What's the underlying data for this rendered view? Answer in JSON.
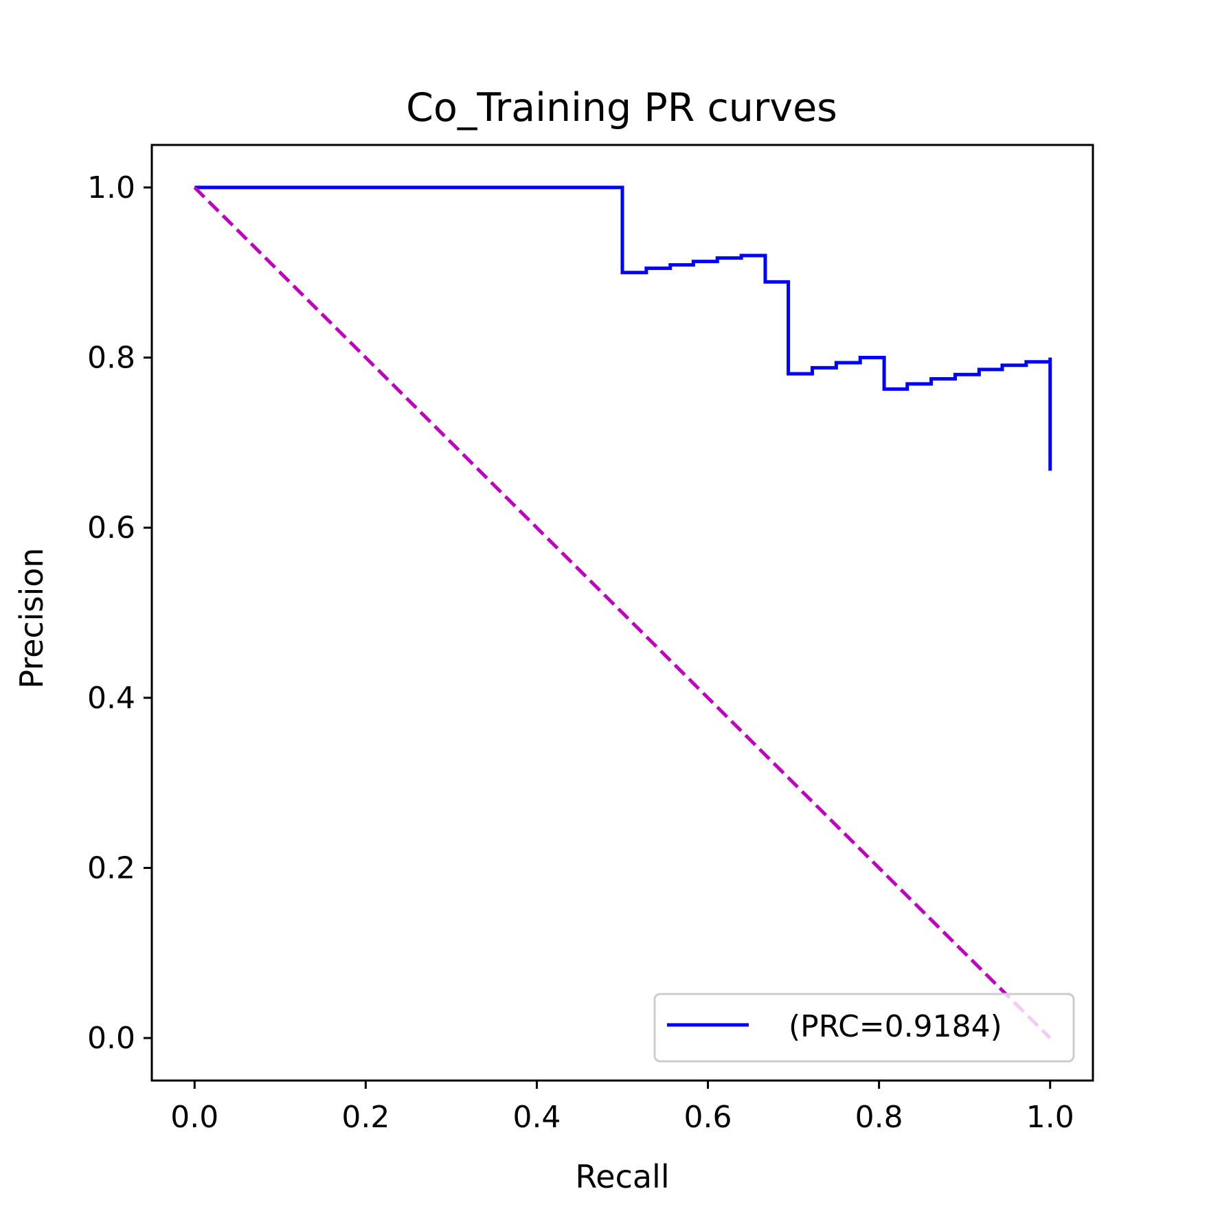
{
  "chart_data": {
    "type": "line",
    "title": "Co_Training PR curves",
    "xlabel": "Recall",
    "ylabel": "Precision",
    "xlim": [
      -0.05,
      1.05
    ],
    "ylim": [
      -0.05,
      1.05
    ],
    "xticks": [
      "0.0",
      "0.2",
      "0.4",
      "0.6",
      "0.8",
      "1.0"
    ],
    "yticks": [
      "0.0",
      "0.2",
      "0.4",
      "0.6",
      "0.8",
      "1.0"
    ],
    "grid": false,
    "legend_position": "lower-right",
    "series": [
      {
        "name": "(PRC=0.9184)",
        "color": "#0000ff",
        "style": "steps-post",
        "x": [
          0.0,
          0.5,
          0.528,
          0.556,
          0.583,
          0.611,
          0.639,
          0.667,
          0.694,
          0.722,
          0.75,
          0.778,
          0.806,
          0.833,
          0.861,
          0.889,
          0.917,
          0.944,
          0.972,
          1.0,
          1.0
        ],
        "y": [
          1.0,
          0.9,
          0.905,
          0.909,
          0.913,
          0.917,
          0.92,
          0.889,
          0.781,
          0.788,
          0.794,
          0.8,
          0.763,
          0.769,
          0.775,
          0.78,
          0.786,
          0.791,
          0.795,
          0.8,
          0.667
        ]
      },
      {
        "color": "#bf00bf",
        "style": "dashed",
        "x": [
          0.0,
          1.0
        ],
        "y": [
          1.0,
          0.0
        ]
      }
    ]
  }
}
